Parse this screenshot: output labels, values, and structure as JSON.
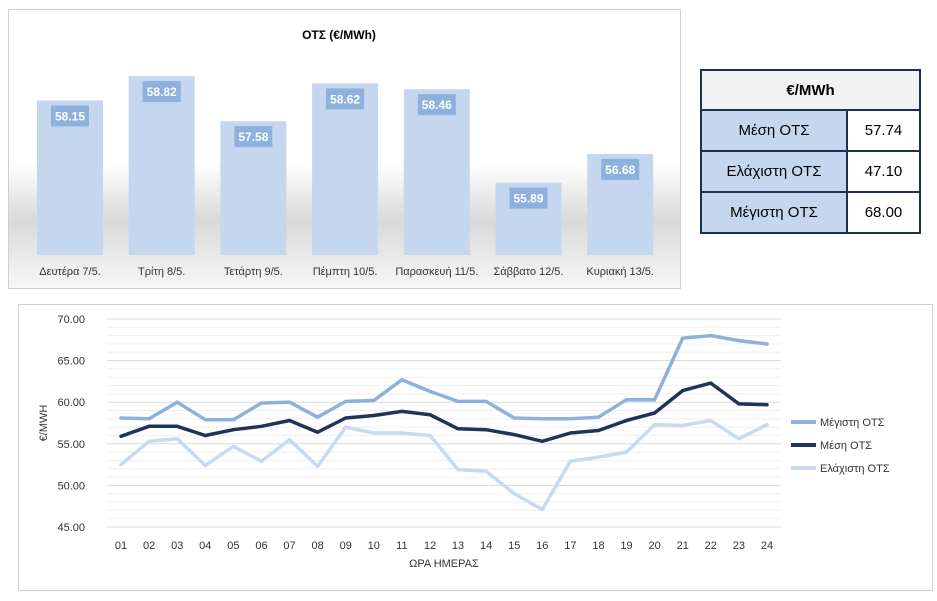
{
  "chart_data": [
    {
      "type": "bar",
      "title": "ΟΤΣ (€/MWh)",
      "categories": [
        "Δευτέρα 7/5.",
        "Τρίτη 8/5.",
        "Τετάρτη 9/5.",
        "Πέμπτη 10/5.",
        "Παρασκευή 11/5.",
        "Σάββατο 12/5.",
        "Κυριακή 13/5."
      ],
      "values": [
        58.15,
        58.82,
        57.58,
        58.62,
        58.46,
        55.89,
        56.68
      ],
      "data_labels": [
        "58.15",
        "58.82",
        "57.58",
        "58.62",
        "58.46",
        "55.89",
        "56.68"
      ],
      "ylim": [
        53.9,
        59.4
      ],
      "color": "#c5d7ef"
    },
    {
      "type": "line",
      "x": [
        "01",
        "02",
        "03",
        "04",
        "05",
        "06",
        "07",
        "08",
        "09",
        "10",
        "11",
        "12",
        "13",
        "14",
        "15",
        "16",
        "17",
        "18",
        "19",
        "20",
        "21",
        "22",
        "23",
        "24"
      ],
      "xlabel": "ΩΡΑ ΗΜΕΡΑΣ",
      "ylabel": "€/MWH",
      "ylim": [
        45,
        70
      ],
      "yticks": [
        "45.00",
        "50.00",
        "55.00",
        "60.00",
        "65.00",
        "70.00"
      ],
      "grid": true,
      "legend": "right",
      "series": [
        {
          "name": "Μέγιστη ΟΤΣ",
          "color": "#8eb0dc",
          "values": [
            58.1,
            58.0,
            60.0,
            57.9,
            57.9,
            59.9,
            60.0,
            58.2,
            60.1,
            60.2,
            62.7,
            61.3,
            60.1,
            60.1,
            58.1,
            58.0,
            58.0,
            58.2,
            60.3,
            60.3,
            67.7,
            68.0,
            67.4,
            67.0
          ]
        },
        {
          "name": "Μέση ΟΤΣ",
          "color": "#1f3458",
          "values": [
            55.9,
            57.1,
            57.1,
            56.0,
            56.7,
            57.1,
            57.8,
            56.4,
            58.1,
            58.4,
            58.9,
            58.5,
            56.8,
            56.7,
            56.1,
            55.3,
            56.3,
            56.6,
            57.8,
            58.7,
            61.4,
            62.3,
            59.8,
            59.7
          ]
        },
        {
          "name": "Ελάχιστη ΟΤΣ",
          "color": "#c9d9ef",
          "values": [
            52.5,
            55.3,
            55.6,
            52.4,
            54.7,
            52.9,
            55.5,
            52.3,
            57.0,
            56.3,
            56.3,
            56.0,
            51.9,
            51.7,
            49.0,
            47.1,
            52.9,
            53.4,
            54.0,
            57.3,
            57.2,
            57.8,
            55.6,
            57.3
          ]
        }
      ]
    }
  ],
  "stats_table": {
    "header": "€/MWh",
    "rows": [
      {
        "label": "Μέση ΟΤΣ",
        "value": "57.74"
      },
      {
        "label": "Ελάχιστη ΟΤΣ",
        "value": "47.10"
      },
      {
        "label": "Μέγιστη ΟΤΣ",
        "value": "68.00"
      }
    ]
  }
}
